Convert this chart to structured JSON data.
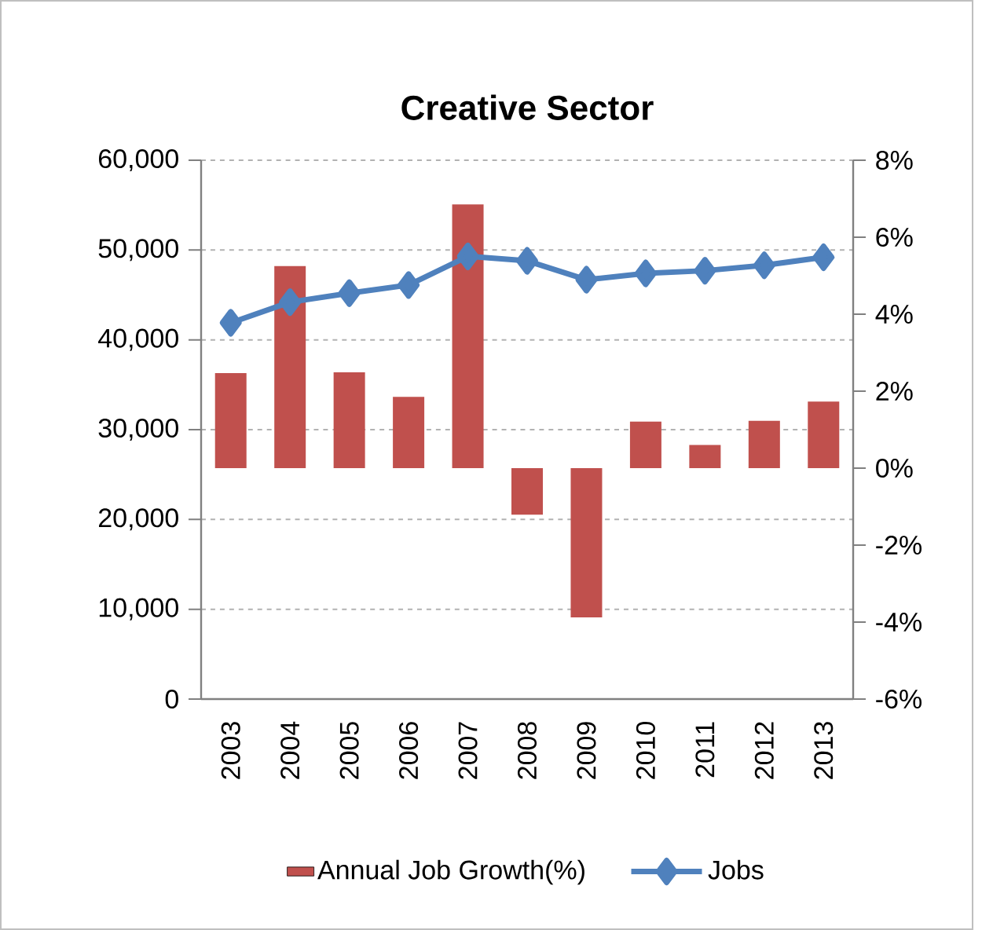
{
  "chart_data": {
    "type": "bar",
    "title": "Creative Sector",
    "categories": [
      "2003",
      "2004",
      "2005",
      "2006",
      "2007",
      "2008",
      "2009",
      "2010",
      "2011",
      "2012",
      "2013"
    ],
    "series": [
      {
        "name": "Annual Job Growth(%)",
        "axis": "y2",
        "color": "#c0504d",
        "values": [
          2.47,
          5.25,
          2.49,
          1.85,
          6.85,
          -1.21,
          -3.88,
          1.21,
          0.6,
          1.23,
          1.73
        ]
      },
      {
        "name": "Jobs",
        "type": "line",
        "color": "#4f81bd",
        "marker": "diamond",
        "values": [
          41900,
          44200,
          45200,
          46100,
          49300,
          48800,
          46700,
          47400,
          47700,
          48300,
          49200
        ]
      }
    ],
    "ylim": [
      0,
      60000
    ],
    "yticks": [
      {
        "value": 0,
        "label": "0"
      },
      {
        "value": 10000,
        "label": "10,000"
      },
      {
        "value": 20000,
        "label": "20,000"
      },
      {
        "value": 30000,
        "label": "30,000"
      },
      {
        "value": 40000,
        "label": "40,000"
      },
      {
        "value": 50000,
        "label": "50,000"
      },
      {
        "value": 60000,
        "label": "60,000"
      }
    ],
    "y2lim": [
      -6,
      8
    ],
    "y2ticks": [
      {
        "value": -6,
        "label": "-6%"
      },
      {
        "value": -4,
        "label": "-4%"
      },
      {
        "value": -2,
        "label": "-2%"
      },
      {
        "value": 0,
        "label": "0%"
      },
      {
        "value": 2,
        "label": "2%"
      },
      {
        "value": 4,
        "label": "4%"
      },
      {
        "value": 6,
        "label": "6%"
      },
      {
        "value": 8,
        "label": "8%"
      }
    ],
    "grid": "y",
    "legend": "bottom"
  }
}
